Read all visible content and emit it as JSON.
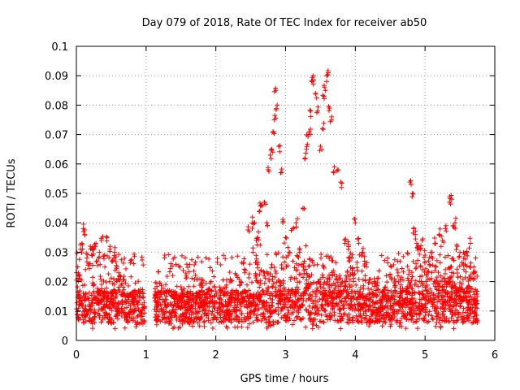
{
  "chart_data": {
    "type": "scatter",
    "title": "Day 079 of 2018, Rate Of TEC Index for receiver ab50",
    "xlabel": "GPS time / hours",
    "ylabel": "ROTI / TECUs",
    "xlim": [
      0,
      6
    ],
    "ylim": [
      0,
      0.1
    ],
    "xticks": [
      "0",
      "1",
      "2",
      "3",
      "4",
      "5",
      "6"
    ],
    "yticks": [
      "0",
      "0.01",
      "0.02",
      "0.03",
      "0.04",
      "0.05",
      "0.06",
      "0.07",
      "0.08",
      "0.09",
      "0.1"
    ],
    "grid": true,
    "marker": "+",
    "color": "#ff0000",
    "series": [
      {
        "name": "ROTI",
        "description_of_distribution": "dense baseline 0.005-0.02 TECU from 0 to 5.75 h, gap between ~0.98 and ~1.12 h",
        "x": [
          0.02,
          0.04,
          0.06,
          0.08,
          0.1,
          0.12,
          0.15,
          0.18,
          0.2,
          0.22,
          0.25,
          0.28,
          0.3,
          0.33,
          0.36,
          0.4,
          0.44,
          0.48,
          0.52,
          0.55,
          0.58,
          0.62,
          2.48,
          2.52,
          2.55,
          2.58,
          2.6,
          2.63,
          2.65,
          2.7,
          2.73,
          2.75,
          2.78,
          2.8,
          2.82,
          2.84,
          2.86,
          2.88,
          2.9,
          2.93,
          2.96,
          3.0,
          3.05,
          3.1,
          3.15,
          3.2,
          3.25,
          3.28,
          3.3,
          3.32,
          3.34,
          3.36,
          3.38,
          3.4,
          3.43,
          3.46,
          3.5,
          3.53,
          3.55,
          3.57,
          3.59,
          3.61,
          3.63,
          3.66,
          3.7,
          3.75,
          3.8,
          3.85,
          3.9,
          3.95,
          4.0,
          4.05,
          4.1,
          4.8,
          4.82,
          4.84,
          4.86,
          4.88,
          4.9,
          4.93,
          4.96,
          5.0,
          5.05,
          5.1,
          5.15,
          5.2,
          5.25,
          5.3,
          5.35,
          5.38,
          5.4,
          5.43,
          5.46,
          5.5,
          5.55,
          5.6,
          5.65,
          5.7
        ],
        "y": [
          0.025,
          0.022,
          0.031,
          0.033,
          0.038,
          0.036,
          0.028,
          0.026,
          0.032,
          0.029,
          0.031,
          0.033,
          0.027,
          0.03,
          0.034,
          0.029,
          0.035,
          0.031,
          0.027,
          0.03,
          0.025,
          0.022,
          0.037,
          0.04,
          0.04,
          0.034,
          0.035,
          0.044,
          0.046,
          0.047,
          0.04,
          0.058,
          0.063,
          0.065,
          0.071,
          0.075,
          0.085,
          0.08,
          0.066,
          0.057,
          0.04,
          0.035,
          0.03,
          0.038,
          0.04,
          0.03,
          0.045,
          0.062,
          0.065,
          0.07,
          0.071,
          0.078,
          0.088,
          0.09,
          0.084,
          0.078,
          0.066,
          0.072,
          0.083,
          0.085,
          0.09,
          0.091,
          0.079,
          0.076,
          0.059,
          0.058,
          0.052,
          0.033,
          0.031,
          0.028,
          0.04,
          0.033,
          0.03,
          0.053,
          0.05,
          0.038,
          0.036,
          0.033,
          0.032,
          0.031,
          0.034,
          0.029,
          0.027,
          0.03,
          0.033,
          0.036,
          0.034,
          0.039,
          0.047,
          0.048,
          0.039,
          0.04,
          0.032,
          0.03,
          0.026,
          0.03,
          0.033,
          0.025
        ]
      }
    ]
  }
}
